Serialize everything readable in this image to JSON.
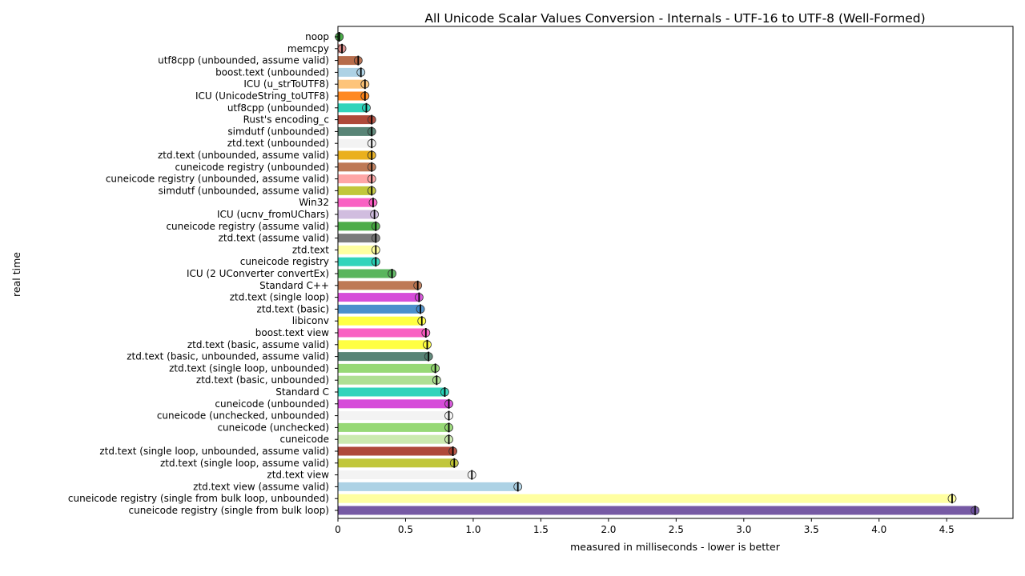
{
  "chart_data": {
    "type": "bar",
    "orientation": "horizontal",
    "title": "All Unicode Scalar Values Conversion - Internals - UTF-16 to UTF-8 (Well-Formed)",
    "xlabel": "measured in milliseconds - lower is better",
    "ylabel": "real time",
    "xlim": [
      0,
      4.99
    ],
    "xticks": [
      "0",
      "0.5",
      "1.0",
      "1.5",
      "2.0",
      "2.5",
      "3.0",
      "3.5",
      "4.0",
      "4.5"
    ],
    "grid": false,
    "legend": "none",
    "categories": [
      "noop",
      "memcpy",
      "utf8cpp (unbounded, assume valid)",
      "boost.text (unbounded)",
      "ICU (u_strToUTF8)",
      "ICU (UnicodeString_toUTF8)",
      "utf8cpp (unbounded)",
      "Rust's encoding_c",
      "simdutf (unbounded)",
      "ztd.text (unbounded)",
      "ztd.text (unbounded, assume valid)",
      "cuneicode registry (unbounded)",
      "cuneicode registry (unbounded, assume valid)",
      "simdutf (unbounded, assume valid)",
      "Win32",
      "ICU (ucnv_fromUChars)",
      "cuneicode registry (assume valid)",
      "ztd.text (assume valid)",
      "ztd.text",
      "cuneicode registry",
      "ICU (2 UConverter convertEx)",
      "Standard C++",
      "ztd.text (single loop)",
      "ztd.text (basic)",
      "libiconv",
      "boost.text view",
      "ztd.text (basic, assume valid)",
      "ztd.text (basic, unbounded, assume valid)",
      "ztd.text (single loop, unbounded)",
      "ztd.text (basic, unbounded)",
      "Standard C",
      "cuneicode (unbounded)",
      "cuneicode (unchecked, unbounded)",
      "cuneicode (unchecked)",
      "cuneicode",
      "ztd.text (single loop, unbounded, assume valid)",
      "ztd.text (single loop, assume valid)",
      "ztd.text view",
      "ztd.text view (assume valid)",
      "cuneicode registry (single from bulk loop, unbounded)",
      "cuneicode registry (single from bulk loop)"
    ],
    "values": [
      0.01,
      0.03,
      0.15,
      0.17,
      0.2,
      0.2,
      0.21,
      0.25,
      0.25,
      0.25,
      0.25,
      0.25,
      0.25,
      0.25,
      0.26,
      0.27,
      0.28,
      0.28,
      0.28,
      0.28,
      0.4,
      0.59,
      0.6,
      0.61,
      0.62,
      0.65,
      0.66,
      0.67,
      0.72,
      0.73,
      0.79,
      0.82,
      0.82,
      0.82,
      0.82,
      0.85,
      0.86,
      0.99,
      1.33,
      4.54,
      4.71
    ],
    "colors": [
      "#2ca02c",
      "#d4817e",
      "#b05f3c",
      "#a6cee3",
      "#fdbf6f",
      "#ff7f0e",
      "#1fd0b5",
      "#a83a29",
      "#4a7a6a",
      "#f2f2f2",
      "#e8a90a",
      "#b86e48",
      "#ff9e9e",
      "#bcc22a",
      "#f954be",
      "#cdb7dc",
      "#3fa63a",
      "#707070",
      "#ffff99",
      "#1fd0b5",
      "#4caf50",
      "#b86e48",
      "#d23ed6",
      "#3b86c8",
      "#ffff33",
      "#f954be",
      "#ffff33",
      "#4a7a6a",
      "#8ed66a",
      "#a8dc8b",
      "#1fd0b5",
      "#d23ed6",
      "#f2f2f2",
      "#8ed66a",
      "#c7e8a8",
      "#a83a29",
      "#bcc22a",
      "#f2f2f2",
      "#a6cee3",
      "#ffff99",
      "#6a4b9c"
    ]
  }
}
